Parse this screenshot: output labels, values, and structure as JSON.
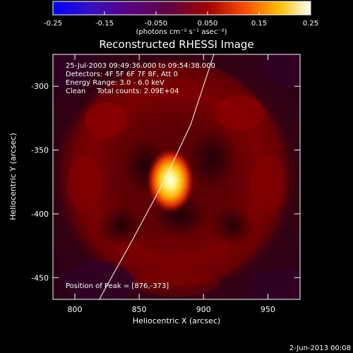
{
  "colorbar": {
    "ticks": [
      "-0.25",
      "-0.15",
      "-0.050",
      "0.050",
      "0.15",
      "0.25"
    ],
    "unit_label": "(photons cm⁻² s⁻¹ asec⁻²)",
    "range": [
      -0.25,
      0.25
    ]
  },
  "chart_data": {
    "type": "heatmap",
    "title": "Reconstructed RHESSI Image",
    "xlabel": "Heliocentric X (arcsec)",
    "ylabel": "Heliocentric Y (arcsec)",
    "xlim": [
      783,
      975
    ],
    "ylim": [
      -467,
      -275
    ],
    "x_ticks": [
      "800",
      "850",
      "900",
      "950"
    ],
    "y_ticks": [
      "-300",
      "-350",
      "-400",
      "-450"
    ],
    "peak": {
      "x": 876,
      "y": -373
    },
    "limb_curve": [
      [
        819,
        -467
      ],
      [
        845,
        -420
      ],
      [
        870,
        -373
      ],
      [
        890,
        -330
      ],
      [
        908,
        -275
      ]
    ],
    "annotations": {
      "time_range": "25-Jul-2003 09:49:36.000 to 09:54:38.000",
      "detectors": "Detectors: 4F 5F 6F 7F 8F, Att 0",
      "energy": "Energy Range: 3.0 - 6.0 keV",
      "clean": "Clean     Total counts: 2.09E+04",
      "peak_position": "Position of Peak = [876,-373]"
    }
  },
  "footer": {
    "date": "2-Jun-2013 00:08"
  }
}
